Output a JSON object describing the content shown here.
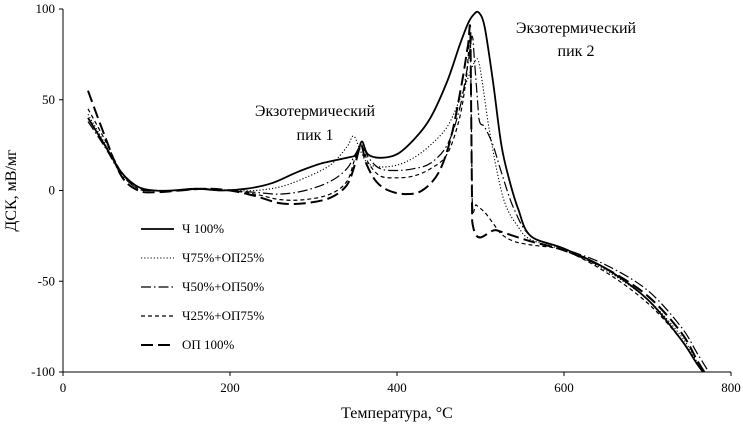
{
  "chart_data": {
    "type": "line",
    "xlabel": "Температура, °C",
    "ylabel": "ДСК, мВ/мг",
    "xlim": [
      0,
      800
    ],
    "ylim": [
      -100,
      100
    ],
    "xticks": [
      "0",
      "200",
      "400",
      "600",
      "800"
    ],
    "yticks": [
      "100",
      "50",
      "0",
      "-50",
      "-100"
    ],
    "grid": false,
    "legend_position": "lower-left",
    "annotations": [
      {
        "line1": "Экзотермический",
        "line2": "пик 1"
      },
      {
        "line1": "Экзотермический",
        "line2": "пик 2"
      }
    ],
    "series": [
      {
        "name": "Ч 100%",
        "dash": "solid",
        "x": [
          30,
          50,
          70,
          90,
          110,
          130,
          160,
          190,
          220,
          250,
          280,
          310,
          340,
          352,
          358,
          365,
          380,
          400,
          420,
          440,
          460,
          475,
          485,
          492,
          498,
          505,
          515,
          525,
          535,
          545,
          560,
          600,
          650,
          700,
          740,
          760,
          775
        ],
        "y": [
          40,
          25,
          10,
          2,
          0,
          0,
          1,
          0,
          1,
          4,
          10,
          15,
          18,
          20,
          27,
          20,
          18,
          20,
          28,
          40,
          60,
          80,
          92,
          97,
          98,
          90,
          60,
          25,
          5,
          -10,
          -25,
          -32,
          -43,
          -60,
          -82,
          -96,
          -105
        ]
      },
      {
        "name": "Ч75%+ОП25%",
        "dash": "dotted",
        "x": [
          30,
          50,
          70,
          90,
          110,
          140,
          170,
          200,
          230,
          260,
          290,
          320,
          340,
          348,
          356,
          365,
          380,
          400,
          420,
          440,
          460,
          475,
          485,
          492,
          497,
          502,
          510,
          520,
          530,
          545,
          560,
          600,
          650,
          700,
          740,
          760,
          775
        ],
        "y": [
          42,
          26,
          10,
          2,
          0,
          0,
          1,
          0,
          0,
          2,
          7,
          14,
          24,
          30,
          22,
          15,
          13,
          14,
          18,
          25,
          35,
          50,
          62,
          70,
          72,
          60,
          35,
          10,
          -8,
          -20,
          -27,
          -33,
          -44,
          -60,
          -80,
          -95,
          -105
        ]
      },
      {
        "name": "Ч50%+ОП50%",
        "dash": "dashdot",
        "x": [
          30,
          50,
          70,
          90,
          110,
          140,
          170,
          200,
          230,
          260,
          290,
          320,
          340,
          350,
          358,
          366,
          380,
          400,
          420,
          440,
          460,
          475,
          485,
          490,
          493,
          498,
          505,
          515,
          525,
          540,
          560,
          600,
          650,
          700,
          740,
          760,
          780
        ],
        "y": [
          38,
          24,
          9,
          1,
          0,
          0,
          1,
          0,
          -1,
          -2,
          0,
          5,
          12,
          20,
          25,
          18,
          12,
          11,
          12,
          15,
          25,
          45,
          70,
          85,
          70,
          40,
          35,
          25,
          10,
          -10,
          -25,
          -32,
          -41,
          -55,
          -75,
          -90,
          -105
        ]
      },
      {
        "name": "Ч25%+ОП75%",
        "dash": "dashed",
        "x": [
          30,
          50,
          70,
          90,
          110,
          140,
          170,
          200,
          230,
          260,
          290,
          320,
          340,
          350,
          358,
          366,
          380,
          400,
          420,
          440,
          460,
          475,
          483,
          488,
          490,
          495,
          505,
          515,
          525,
          540,
          560,
          600,
          650,
          700,
          740,
          760,
          775
        ],
        "y": [
          45,
          28,
          10,
          1,
          0,
          0,
          1,
          0,
          -2,
          -5,
          -5,
          -2,
          5,
          18,
          24,
          15,
          8,
          7,
          8,
          12,
          20,
          40,
          62,
          80,
          -5,
          -8,
          -12,
          -18,
          -24,
          -28,
          -30,
          -33,
          -45,
          -62,
          -82,
          -96,
          -105
        ]
      },
      {
        "name": "ОП 100%",
        "dash": "longdash",
        "x": [
          30,
          50,
          70,
          90,
          110,
          140,
          170,
          200,
          230,
          260,
          290,
          320,
          340,
          350,
          357,
          363,
          375,
          390,
          410,
          430,
          450,
          465,
          478,
          485,
          488,
          490,
          520,
          560,
          600,
          650,
          700,
          740,
          760,
          775
        ],
        "y": [
          55,
          30,
          8,
          0,
          -1,
          0,
          1,
          0,
          -3,
          -7,
          -7,
          -4,
          3,
          15,
          25,
          15,
          5,
          0,
          -2,
          0,
          10,
          30,
          60,
          80,
          84,
          -17,
          -22,
          -28,
          -33,
          -43,
          -58,
          -78,
          -94,
          -105
        ]
      }
    ]
  }
}
